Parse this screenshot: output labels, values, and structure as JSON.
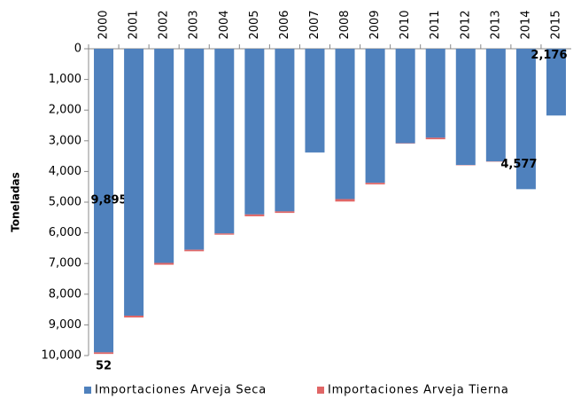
{
  "chart_data": {
    "type": "stacked_bar",
    "y_axis_label": "Toneladas",
    "categories": [
      "2000",
      "2001",
      "2002",
      "2003",
      "2004",
      "2005",
      "2006",
      "2007",
      "2008",
      "2009",
      "2010",
      "2011",
      "2012",
      "2013",
      "2014",
      "2015"
    ],
    "series": [
      {
        "name": "Importaciones Arveja Seca",
        "color": "#4f81bd",
        "values": [
          9895,
          8700,
          6980,
          6550,
          6020,
          5400,
          5300,
          3380,
          4900,
          4370,
          3080,
          2900,
          3790,
          3670,
          4577,
          2176
        ],
        "value_labels": [
          "9,895",
          null,
          null,
          null,
          null,
          null,
          null,
          null,
          null,
          null,
          null,
          null,
          null,
          null,
          "4,577",
          "2,176"
        ]
      },
      {
        "name": "Importaciones Arveja Tierna",
        "color": "#e06666",
        "values": [
          52,
          60,
          60,
          50,
          40,
          60,
          50,
          0,
          80,
          50,
          10,
          50,
          10,
          10,
          0,
          0
        ],
        "value_labels": [
          "52",
          null,
          null,
          null,
          null,
          null,
          null,
          null,
          null,
          null,
          null,
          null,
          null,
          null,
          null,
          null
        ]
      }
    ],
    "ylim": [
      0,
      10000
    ],
    "y_inverted": true,
    "yticks": [
      0,
      {
        "value": 1000,
        "label": "1,000"
      },
      {
        "value": 2000,
        "label": "2,000"
      },
      {
        "value": 3000,
        "label": "3,000"
      },
      {
        "value": 4000,
        "label": "4,000"
      },
      {
        "value": 5000,
        "label": "5,000"
      },
      {
        "value": 6000,
        "label": "6,000"
      },
      {
        "value": 7000,
        "label": "7,000"
      },
      {
        "value": 8000,
        "label": "8,000"
      },
      {
        "value": 9000,
        "label": "9,000"
      },
      {
        "value": 10000,
        "label": "10,000"
      }
    ],
    "grid": false,
    "legend": "bottom"
  }
}
